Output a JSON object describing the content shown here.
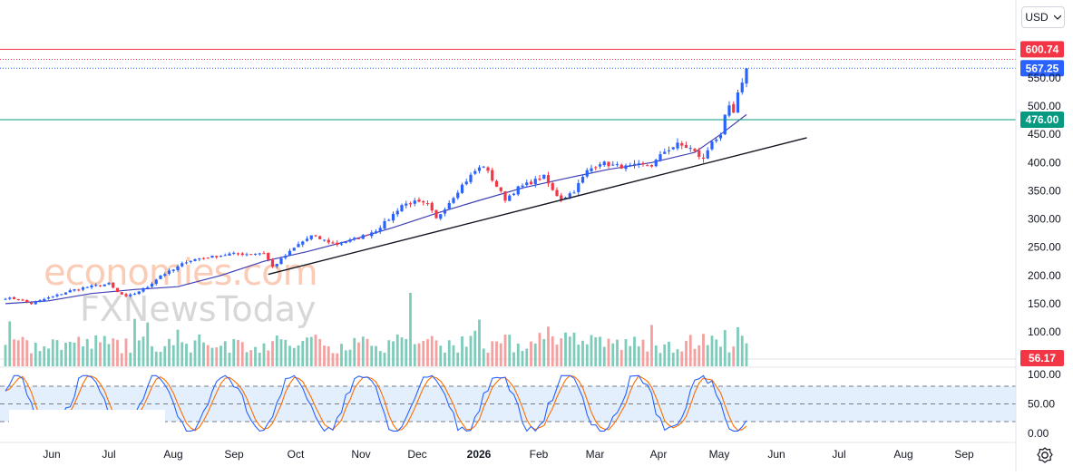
{
  "currency_label": "USD",
  "watermark": {
    "line1": "economies.com",
    "line2": "FXNewsToday"
  },
  "chart_data": [
    {
      "type": "candlestick",
      "x_labels": [
        "Jun",
        "Jul",
        "Aug",
        "Sep",
        "Oct",
        "Nov",
        "Dec",
        "2026",
        "Feb",
        "Mar",
        "Apr",
        "May",
        "Jun",
        "Jul",
        "Aug",
        "Sep"
      ],
      "x_label_bold": "2026",
      "y_ticks": [
        100,
        150,
        200,
        250,
        300,
        350,
        400,
        450,
        500,
        550
      ],
      "y_tick_labels": [
        "100.00",
        "150.00",
        "200.00",
        "250.00",
        "300.00",
        "350.00",
        "400.00",
        "450.00",
        "500.00",
        "550.00"
      ],
      "ylim": [
        85,
        620
      ],
      "up_color": "#2962ff",
      "down_color": "#f23645",
      "anchors": [
        [
          0,
          160
        ],
        [
          3,
          158
        ],
        [
          6,
          150
        ],
        [
          9,
          158
        ],
        [
          12,
          165
        ],
        [
          15,
          173
        ],
        [
          18,
          178
        ],
        [
          21,
          182
        ],
        [
          24,
          185
        ],
        [
          26,
          170
        ],
        [
          28,
          162
        ],
        [
          30,
          168
        ],
        [
          33,
          180
        ],
        [
          36,
          200
        ],
        [
          39,
          210
        ],
        [
          42,
          225
        ],
        [
          45,
          230
        ],
        [
          48,
          233
        ],
        [
          52,
          238
        ],
        [
          56,
          238
        ],
        [
          60,
          240
        ],
        [
          62,
          215
        ],
        [
          65,
          235
        ],
        [
          68,
          255
        ],
        [
          71,
          270
        ],
        [
          74,
          262
        ],
        [
          77,
          255
        ],
        [
          80,
          262
        ],
        [
          83,
          270
        ],
        [
          86,
          280
        ],
        [
          89,
          300
        ],
        [
          92,
          325
        ],
        [
          95,
          330
        ],
        [
          98,
          325
        ],
        [
          100,
          300
        ],
        [
          103,
          330
        ],
        [
          106,
          360
        ],
        [
          109,
          385
        ],
        [
          111,
          395
        ],
        [
          113,
          370
        ],
        [
          116,
          335
        ],
        [
          119,
          355
        ],
        [
          122,
          365
        ],
        [
          125,
          375
        ],
        [
          127,
          350
        ],
        [
          129,
          335
        ],
        [
          132,
          350
        ],
        [
          135,
          385
        ],
        [
          138,
          400
        ],
        [
          141,
          395
        ],
        [
          144,
          392
        ],
        [
          147,
          395
        ],
        [
          150,
          395
        ],
        [
          153,
          420
        ],
        [
          156,
          432
        ],
        [
          159,
          425
        ],
        [
          162,
          405
        ],
        [
          164,
          440
        ],
        [
          166,
          445
        ],
        [
          167,
          480
        ],
        [
          168,
          500
        ],
        [
          169,
          485
        ],
        [
          170,
          520
        ],
        [
          171,
          545
        ],
        [
          172,
          567
        ]
      ],
      "moving_average": {
        "color": "#3f3fb5",
        "points": [
          [
            0,
            150
          ],
          [
            10,
            155
          ],
          [
            20,
            168
          ],
          [
            30,
            175
          ],
          [
            40,
            180
          ],
          [
            50,
            200
          ],
          [
            60,
            225
          ],
          [
            70,
            242
          ],
          [
            80,
            262
          ],
          [
            90,
            285
          ],
          [
            100,
            310
          ],
          [
            110,
            333
          ],
          [
            120,
            355
          ],
          [
            130,
            372
          ],
          [
            140,
            388
          ],
          [
            150,
            400
          ],
          [
            160,
            418
          ],
          [
            166,
            450
          ],
          [
            172,
            485
          ]
        ]
      },
      "trendline": {
        "color": "#131722",
        "from": {
          "index": 61,
          "value": 202
        },
        "to": {
          "index": 186,
          "value": 444
        }
      },
      "horizontal_levels": [
        {
          "value": 600.74,
          "label": "600.74",
          "color": "#f23645",
          "style": "solid"
        },
        {
          "value": 567.25,
          "label": "567.25",
          "color": "#2962ff",
          "style": "dotted"
        },
        {
          "value": 476.0,
          "label": "476.00",
          "color": "#089981",
          "style": "solid"
        }
      ],
      "extra_dotted_level": {
        "value": 583,
        "color": "#f23645"
      }
    },
    {
      "type": "bar",
      "name": "volume",
      "current_value_label": "56.17",
      "up_color": "#7dcbbb",
      "down_color": "#f4a09f",
      "spikes": [
        {
          "index": 94,
          "value": 170,
          "up": true
        }
      ],
      "baseline_value": 56.17
    },
    {
      "type": "line",
      "name": "stochastic",
      "y_tick_labels": [
        "100.00",
        "50.00",
        "0.00"
      ],
      "ylim": [
        0,
        100
      ],
      "band": [
        20,
        80
      ],
      "k_color": "#2962ff",
      "d_color": "#ff6d00",
      "band_fill": "#e3effd"
    }
  ]
}
